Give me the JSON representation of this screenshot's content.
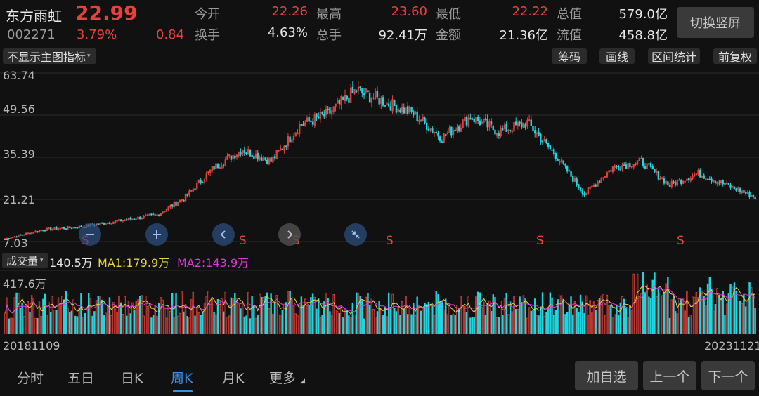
{
  "header": {
    "name": "东方雨虹",
    "price": "22.99",
    "code": "002271",
    "change_pct": "3.79%",
    "change": "0.84",
    "quotes": [
      {
        "label": "今开",
        "value": "22.26",
        "color": "#e8413a"
      },
      {
        "label": "最高",
        "value": "23.60",
        "color": "#e8413a"
      },
      {
        "label": "最低",
        "value": "22.22",
        "color": "#e8413a"
      },
      {
        "label": "总值",
        "value": "579.0亿",
        "color": "#e6e6e6"
      },
      {
        "label": "换手",
        "value": "4.63%",
        "color": "#e6e6e6"
      },
      {
        "label": "总手",
        "value": "92.41万",
        "color": "#e6e6e6"
      },
      {
        "label": "金额",
        "value": "21.36亿",
        "color": "#e6e6e6"
      },
      {
        "label": "流值",
        "value": "458.8亿",
        "color": "#e6e6e6"
      }
    ],
    "switch_button": "切换竖屏"
  },
  "toolbar": {
    "indicator_dropdown": "不显示主图指标",
    "chips_button": "筹码",
    "draw_button": "画线",
    "interval_button": "区间统计",
    "adjust_button": "前复权"
  },
  "price_axis": [
    "63.74",
    "49.56",
    "35.39",
    "21.21",
    "7.03"
  ],
  "sell_marker": "S",
  "volume": {
    "dropdown": "成交量",
    "current": "140.5万",
    "ma1": "MA1:179.9万",
    "ma2": "MA2:143.9万",
    "max_label": "417.6万",
    "ma1_color": "#e5d53a",
    "ma2_color": "#d83ad8"
  },
  "date_range": {
    "start": "20181109",
    "end": "20231121"
  },
  "tabs": [
    "分时",
    "五日",
    "日K",
    "周K",
    "月K",
    "更多"
  ],
  "active_tab": "周K",
  "buttons": {
    "add_watch": "加自选",
    "prev": "上一个",
    "next": "下一个"
  },
  "colors": {
    "up": "#e8413a",
    "down": "#1fd6e0",
    "accent": "#3d8fe0"
  },
  "chart_data": {
    "type": "candlestick",
    "period": "weekly",
    "x_range": [
      "20181109",
      "20231121"
    ],
    "ylim": [
      7.03,
      63.74
    ],
    "y_ticks": [
      63.74,
      49.56,
      35.39,
      21.21,
      7.03
    ],
    "approx_close_path": [
      [
        0,
        8
      ],
      [
        20,
        11
      ],
      [
        40,
        12
      ],
      [
        60,
        14
      ],
      [
        80,
        16
      ],
      [
        95,
        22
      ],
      [
        110,
        32
      ],
      [
        125,
        38
      ],
      [
        140,
        34
      ],
      [
        155,
        46
      ],
      [
        170,
        50
      ],
      [
        185,
        58
      ],
      [
        200,
        54
      ],
      [
        215,
        50
      ],
      [
        230,
        42
      ],
      [
        245,
        49
      ],
      [
        260,
        44
      ],
      [
        275,
        47
      ],
      [
        290,
        36
      ],
      [
        305,
        23
      ],
      [
        320,
        32
      ],
      [
        335,
        34
      ],
      [
        350,
        26
      ],
      [
        365,
        30
      ],
      [
        380,
        26
      ],
      [
        395,
        22
      ]
    ],
    "sell_signals": 6,
    "volume_max": "417.6万"
  }
}
